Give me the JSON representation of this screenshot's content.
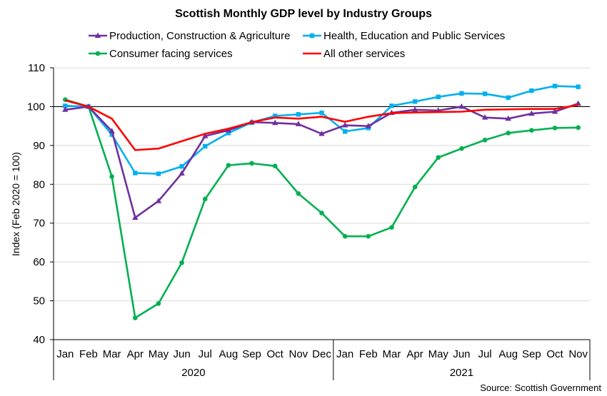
{
  "chart_data": {
    "type": "line",
    "title": "Scottish Monthly GDP level by Industry Groups",
    "ylabel": "Index (Feb 2020 = 100)",
    "xlabel": "",
    "ylim": [
      40,
      110
    ],
    "yticks": [
      40,
      50,
      60,
      70,
      80,
      90,
      100,
      110
    ],
    "reference_line": 100,
    "grid": "horizontal",
    "legend_position": "top",
    "categories": [
      "Jan",
      "Feb",
      "Mar",
      "Apr",
      "May",
      "Jun",
      "Jul",
      "Aug",
      "Sep",
      "Oct",
      "Nov",
      "Dec",
      "Jan",
      "Feb",
      "Mar",
      "Apr",
      "May",
      "Jun",
      "Jul",
      "Aug",
      "Sep",
      "Oct",
      "Nov"
    ],
    "year_groups": [
      {
        "label": "2020",
        "start": 0,
        "end": 11
      },
      {
        "label": "2021",
        "start": 12,
        "end": 22
      }
    ],
    "series": [
      {
        "name": "Production, Construction & Agriculture",
        "color": "#7030a0",
        "marker": "triangle",
        "values": [
          99.2,
          100,
          93.7,
          71.4,
          75.7,
          82.8,
          92.4,
          93.9,
          96.0,
          95.8,
          95.5,
          93.0,
          95.2,
          95.0,
          98.4,
          99.2,
          99.0,
          100.0,
          97.2,
          96.9,
          98.2,
          98.7,
          100.8
        ]
      },
      {
        "name": "Health, Education and Public Services",
        "color": "#00b0f0",
        "marker": "square",
        "values": [
          100.2,
          100,
          92.8,
          82.9,
          82.7,
          84.6,
          89.8,
          93.2,
          95.9,
          97.6,
          98.0,
          98.4,
          93.6,
          94.5,
          100.2,
          101.3,
          102.5,
          103.4,
          103.3,
          102.3,
          104.1,
          105.3,
          105.1
        ]
      },
      {
        "name": "Consumer facing services",
        "color": "#00b050",
        "marker": "circle",
        "values": [
          101.8,
          100,
          82.0,
          45.6,
          49.3,
          59.8,
          76.2,
          84.9,
          85.4,
          84.7,
          77.6,
          72.6,
          66.6,
          66.6,
          68.9,
          79.3,
          86.9,
          89.2,
          91.4,
          93.2,
          93.9,
          94.5,
          94.6
        ]
      },
      {
        "name": "All other services",
        "color": "#ff0000",
        "marker": "none",
        "values": [
          101.6,
          100,
          96.9,
          88.8,
          89.2,
          91.1,
          93.0,
          94.3,
          96.0,
          97.2,
          96.9,
          97.4,
          96.1,
          97.4,
          98.3,
          98.5,
          98.6,
          98.7,
          99.2,
          99.3,
          99.4,
          99.4,
          100.4
        ]
      }
    ],
    "source": "Source: Scottish Government"
  }
}
